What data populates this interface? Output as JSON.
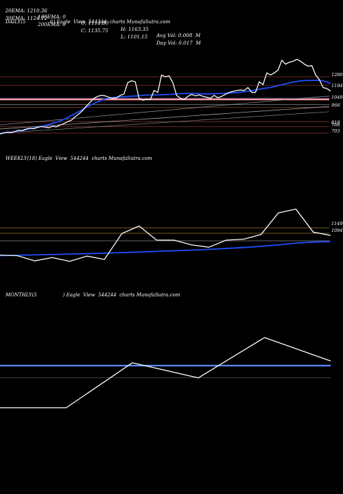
{
  "header": {
    "row1": [
      {
        "label": "20EMA: 1210.36"
      },
      {
        "label": "100EMA: 0"
      },
      {
        "label": "O: 1113.80"
      },
      {
        "label": "H: 1163.35"
      },
      {
        "label": "Avg Vol: 0.008  M"
      }
    ],
    "row2": [
      {
        "label": "30EMA: 1124.12"
      },
      {
        "label": "200EMA: 0"
      },
      {
        "label": "C: 1135.75"
      },
      {
        "label": "L: 1101.15"
      },
      {
        "label": "Day Vol: 0.017  M"
      }
    ]
  },
  "colors": {
    "background": "#000000",
    "price": "#ffffff",
    "ema": "#1f4fff",
    "level": "#8a3a2a",
    "support": "#ff9999",
    "weekly_level": "#a08030",
    "monthly_level": "#5b8cff"
  },
  "chart_data": [
    {
      "type": "line",
      "title": "DAILY(5                6) Eagle  View  544244  charts MunafaSutra.com",
      "series": [
        {
          "values": [
            695,
            705,
            712,
            708,
            720,
            732,
            728,
            745,
            752,
            748,
            762,
            770,
            765,
            758,
            772,
            768,
            785,
            800,
            820,
            835,
            870,
            900,
            935,
            980,
            1020,
            1060,
            1080,
            1090,
            1085,
            1070,
            1060,
            1065,
            1090,
            1105,
            1220,
            1240,
            1230,
            1060,
            1040,
            1050,
            1045,
            1140,
            1120,
            1300,
            1280,
            1290,
            1220,
            1090,
            1060,
            1050,
            1080,
            1100,
            1085,
            1095,
            1080,
            1070,
            1060,
            1090,
            1065,
            1080,
            1100,
            1120,
            1130,
            1140,
            1145,
            1140,
            1170,
            1120,
            1120,
            1230,
            1200,
            1320,
            1300,
            1320,
            1350,
            1450,
            1410,
            1430,
            1440,
            1460,
            1440,
            1410,
            1390,
            1395,
            1300,
            1250,
            1170,
            1160,
            1135
          ]
        },
        {
          "values": [
            700,
            705,
            710,
            714,
            720,
            727,
            735,
            744,
            752,
            760,
            770,
            780,
            790,
            802,
            815,
            830,
            848,
            868,
            890,
            912,
            935,
            958,
            980,
            1000,
            1020,
            1038,
            1052,
            1062,
            1068,
            1072,
            1075,
            1078,
            1080,
            1082,
            1085,
            1090,
            1092,
            1094,
            1095,
            1095,
            1096,
            1098,
            1100,
            1102,
            1105,
            1108,
            1110,
            1110,
            1110,
            1108,
            1105,
            1104,
            1104,
            1106,
            1108,
            1110,
            1112,
            1114,
            1117,
            1120,
            1125,
            1130,
            1135,
            1142,
            1150,
            1158,
            1165,
            1170,
            1180,
            1190,
            1200,
            1210,
            1220,
            1228,
            1235,
            1240,
            1242,
            1243,
            1244,
            1245,
            1240,
            1230,
            1210
          ]
        }
      ],
      "levels": [
        1280,
        1194,
        1049,
        968,
        819,
        768,
        703
      ],
      "level_labels": [
        "1280",
        "1194",
        "1049",
        "968",
        "819",
        "768",
        "703"
      ]
    },
    {
      "type": "line",
      "title": "WEEKLY(18) Eagle  View  544244  charts MunafaSutra.com",
      "series": [
        {
          "values": [
            380,
            370,
            260,
            330,
            250,
            360,
            290,
            840,
            1000,
            700,
            700,
            600,
            550,
            700,
            720,
            820,
            1280,
            1360,
            870,
            800
          ]
        },
        {
          "values": [
            370,
            378,
            386,
            394,
            402,
            410,
            420,
            430,
            442,
            455,
            468,
            480,
            495,
            510,
            530,
            550,
            575,
            605,
            640,
            660,
            670
          ]
        }
      ],
      "levels": [
        1149,
        1094
      ],
      "level_labels": [
        "1149",
        "1094"
      ]
    },
    {
      "type": "line",
      "title": "MONTHLY(5                 ) Eagle  View  544244  charts MunafaSutra.com",
      "series": [
        {
          "values": [
            100,
            100,
            580,
            420,
            850,
            600
          ]
        },
        {
          "values": [
            550,
            550,
            550,
            550,
            550,
            550
          ]
        }
      ],
      "levels": [],
      "level_labels": []
    }
  ]
}
